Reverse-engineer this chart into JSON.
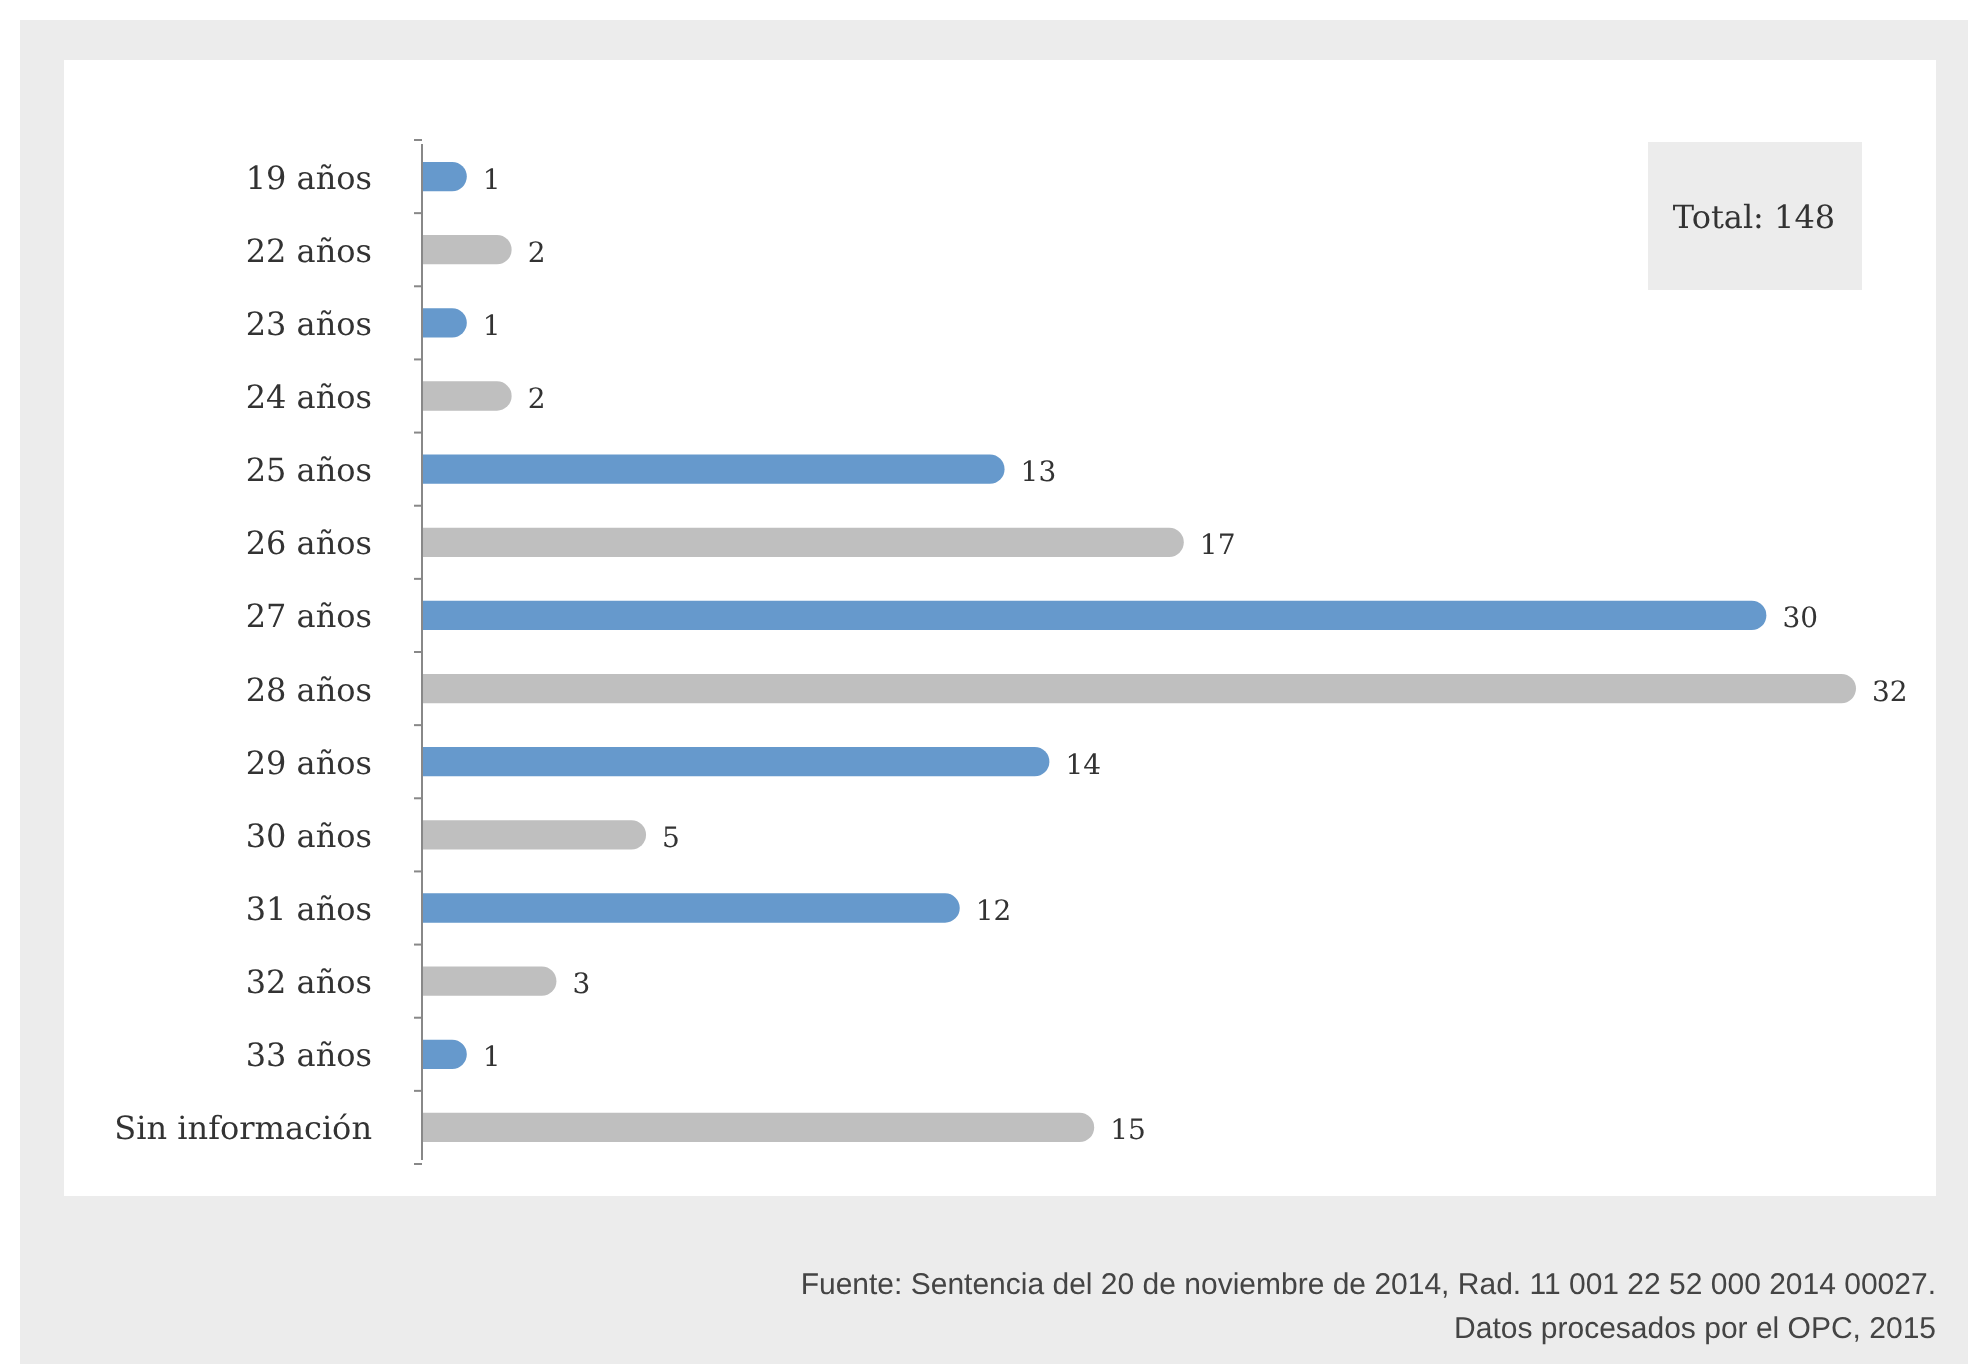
{
  "chart_data": {
    "type": "bar",
    "orientation": "horizontal",
    "categories": [
      "19 años",
      "22 años",
      "23 años",
      "24 años",
      "25 años",
      "26 años",
      "27 años",
      "28 años",
      "29 años",
      "30 años",
      "31 años",
      "32 años",
      "33 años",
      "Sin información"
    ],
    "values": [
      1,
      2,
      1,
      2,
      13,
      17,
      30,
      32,
      14,
      5,
      12,
      3,
      1,
      15
    ],
    "colors": [
      "#6699cc",
      "#bfbfbf",
      "#6699cc",
      "#bfbfbf",
      "#6699cc",
      "#bfbfbf",
      "#6699cc",
      "#bfbfbf",
      "#6699cc",
      "#bfbfbf",
      "#6699cc",
      "#bfbfbf",
      "#6699cc",
      "#bfbfbf"
    ],
    "data_labels": true,
    "annotations": [
      "Total: 148",
      "Fuente: Sentencia del 20 de noviembre de 2014, Rad. 11 001 22 52 000 2014 00027.",
      "Datos procesados por el OPC, 2015"
    ]
  }
}
